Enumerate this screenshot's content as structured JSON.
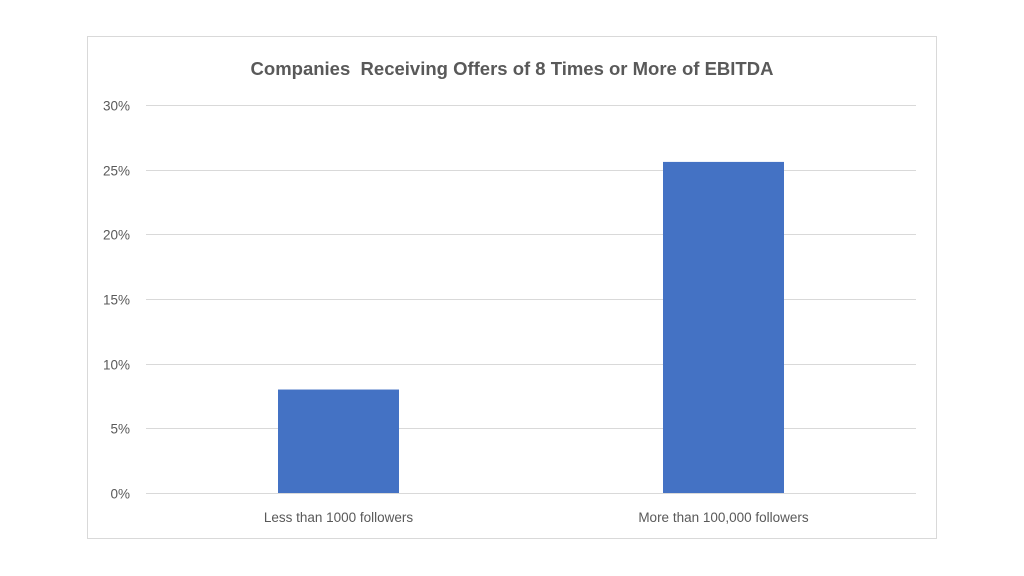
{
  "chart_data": {
    "type": "bar",
    "title": "Companies  Receiving Offers of 8 Times or More of EBITDA",
    "xlabel": "",
    "ylabel": "",
    "categories": [
      "Less than 1000 followers",
      "More than 100,000 followers"
    ],
    "values": [
      0.08,
      0.256
    ],
    "ylim": [
      0,
      0.3
    ],
    "yticks": [
      0,
      0.05,
      0.1,
      0.15,
      0.2,
      0.25,
      0.3
    ],
    "ytick_labels": [
      "0%",
      "5%",
      "10%",
      "15%",
      "20%",
      "25%",
      "30%"
    ],
    "grid": true,
    "legend": "none",
    "bar_color": "#4472c4",
    "grid_color": "#d9d9d9"
  }
}
